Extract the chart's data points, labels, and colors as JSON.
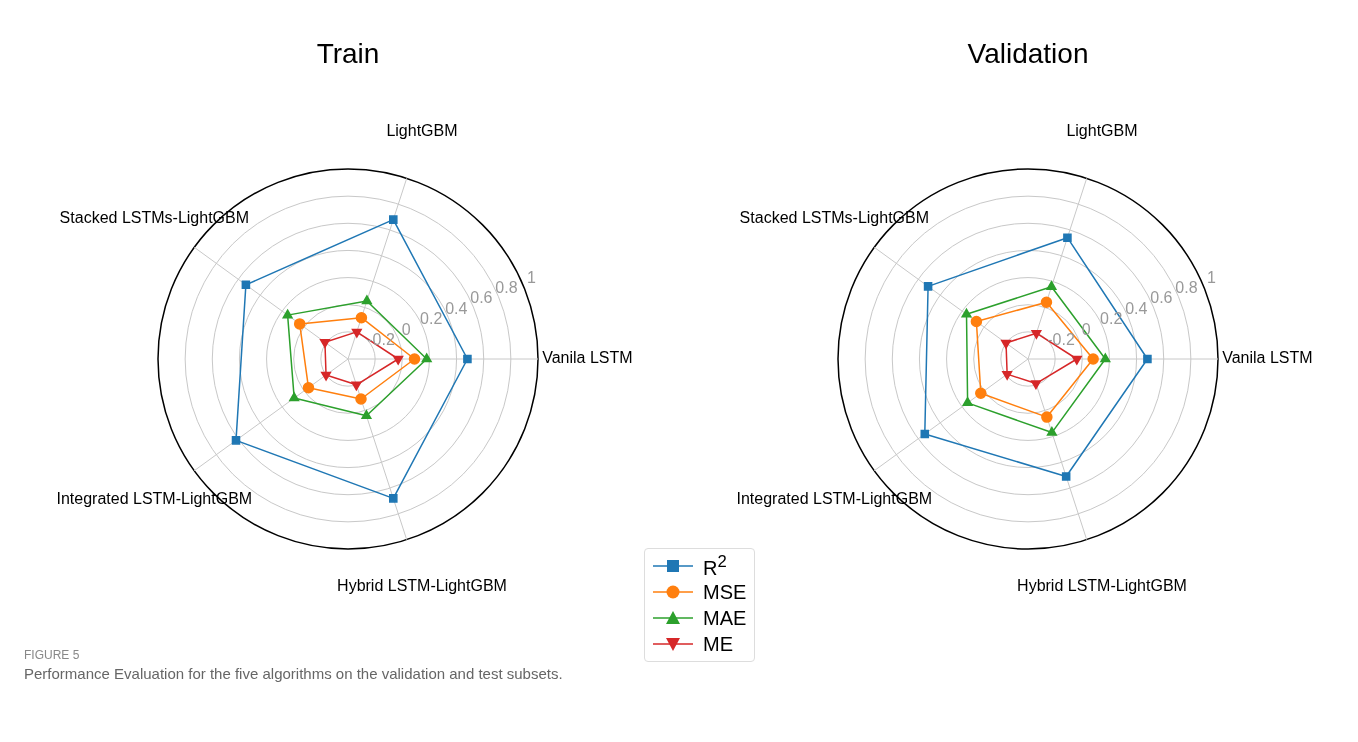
{
  "chart_data": [
    {
      "type": "radar",
      "title": "Train",
      "categories": [
        "Vanila LSTM",
        "Hybrid LSTM-LightGBM",
        "Integrated LSTM-LightGBM",
        "Stacked LSTMs-LightGBM",
        "LightGBM"
      ],
      "ylim": [
        -0.4,
        1.0
      ],
      "yticks": [
        -0.2,
        0,
        0.2,
        0.4,
        0.6,
        0.8,
        1.0
      ],
      "grid": true,
      "series": [
        {
          "color": "#1f77b4",
          "marker": "square",
          "values": [
            0.48,
            0.68,
            0.62,
            0.53,
            0.68
          ]
        },
        {
          "color": "#ff7f0e",
          "marker": "circle",
          "values": [
            0.09,
            -0.09,
            -0.04,
            0.04,
            -0.08
          ]
        },
        {
          "color": "#2ca02c",
          "marker": "triangle",
          "values": [
            0.18,
            0.04,
            0.09,
            0.15,
            0.05
          ]
        },
        {
          "color": "#d62728",
          "marker": "triangle-down",
          "values": [
            -0.03,
            -0.2,
            -0.2,
            -0.19,
            -0.19
          ]
        }
      ],
      "annotations": [
        "FIGURE 5",
        "Performance Evaluation for the five algorithms on the validation and test subsets."
      ]
    },
    {
      "type": "radar",
      "title": "Validation",
      "categories": [
        "Vanila LSTM",
        "Hybrid LSTM-LightGBM",
        "Integrated LSTM-LightGBM",
        "Stacked LSTMs-LightGBM",
        "LightGBM"
      ],
      "ylim": [
        -0.4,
        1.0
      ],
      "yticks": [
        -0.2,
        0,
        0.2,
        0.4,
        0.6,
        0.8,
        1.0
      ],
      "grid": true,
      "legend": "bottom left",
      "series": [
        {
          "name": "R$^{2}$",
          "color": "#1f77b4",
          "marker": "square",
          "values": [
            0.48,
            0.51,
            0.54,
            0.51,
            0.54
          ]
        },
        {
          "name": "MSE",
          "color": "#ff7f0e",
          "marker": "circle",
          "values": [
            0.08,
            0.05,
            0.03,
            0.07,
            0.04
          ]
        },
        {
          "name": "MAE",
          "color": "#2ca02c",
          "marker": "triangle",
          "values": [
            0.17,
            0.17,
            0.15,
            0.16,
            0.16
          ]
        },
        {
          "name": "ME",
          "color": "#d62728",
          "marker": "triangle-down",
          "values": [
            -0.04,
            -0.21,
            -0.21,
            -0.2,
            -0.2
          ]
        }
      ]
    }
  ]
}
